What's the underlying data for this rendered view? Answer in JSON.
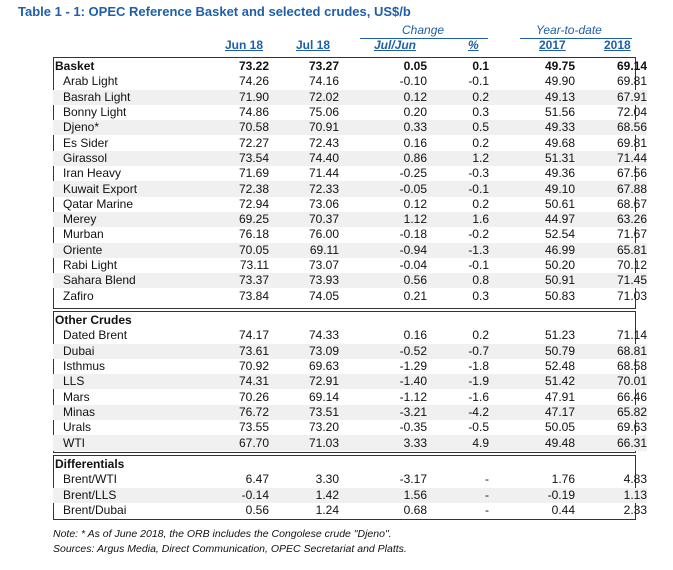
{
  "title": "Table 1 - 1: OPEC Reference Basket and selected crudes, US$/b",
  "headers": {
    "change_group": "Change",
    "ytd_group": "Year-to-date",
    "jun18": "Jun 18",
    "jul18": "Jul 18",
    "julJun": "Jul/Jun",
    "pct": "%",
    "y2017": "2017",
    "y2018": "2018"
  },
  "sections": [
    {
      "name": "Basket",
      "head_values": [
        "73.22",
        "73.27",
        "0.05",
        "0.1",
        "49.75",
        "69.14"
      ],
      "rows": [
        {
          "label": "Arab Light",
          "values": [
            "74.26",
            "74.16",
            "-0.10",
            "-0.1",
            "49.90",
            "69.81"
          ]
        },
        {
          "label": "Basrah Light",
          "values": [
            "71.90",
            "72.02",
            "0.12",
            "0.2",
            "49.13",
            "67.91"
          ]
        },
        {
          "label": "Bonny Light",
          "values": [
            "74.86",
            "75.06",
            "0.20",
            "0.3",
            "51.56",
            "72.04"
          ]
        },
        {
          "label": "Djeno*",
          "values": [
            "70.58",
            "70.91",
            "0.33",
            "0.5",
            "49.33",
            "68.56"
          ]
        },
        {
          "label": "Es Sider",
          "values": [
            "72.27",
            "72.43",
            "0.16",
            "0.2",
            "49.68",
            "69.81"
          ]
        },
        {
          "label": "Girassol",
          "values": [
            "73.54",
            "74.40",
            "0.86",
            "1.2",
            "51.31",
            "71.44"
          ]
        },
        {
          "label": "Iran Heavy",
          "values": [
            "71.69",
            "71.44",
            "-0.25",
            "-0.3",
            "49.36",
            "67.56"
          ]
        },
        {
          "label": "Kuwait Export",
          "values": [
            "72.38",
            "72.33",
            "-0.05",
            "-0.1",
            "49.10",
            "67.88"
          ]
        },
        {
          "label": "Qatar Marine",
          "values": [
            "72.94",
            "73.06",
            "0.12",
            "0.2",
            "50.61",
            "68.67"
          ]
        },
        {
          "label": "Merey",
          "values": [
            "69.25",
            "70.37",
            "1.12",
            "1.6",
            "44.97",
            "63.26"
          ]
        },
        {
          "label": "Murban",
          "values": [
            "76.18",
            "76.00",
            "-0.18",
            "-0.2",
            "52.54",
            "71.67"
          ]
        },
        {
          "label": "Oriente",
          "values": [
            "70.05",
            "69.11",
            "-0.94",
            "-1.3",
            "46.99",
            "65.81"
          ]
        },
        {
          "label": "Rabi Light",
          "values": [
            "73.11",
            "73.07",
            "-0.04",
            "-0.1",
            "50.20",
            "70.12"
          ]
        },
        {
          "label": "Sahara Blend",
          "values": [
            "73.37",
            "73.93",
            "0.56",
            "0.8",
            "50.91",
            "71.45"
          ]
        },
        {
          "label": "Zafiro",
          "values": [
            "73.84",
            "74.05",
            "0.21",
            "0.3",
            "50.83",
            "71.03"
          ]
        }
      ]
    },
    {
      "name": "Other Crudes",
      "head_values": [
        "",
        "",
        "",
        "",
        "",
        ""
      ],
      "rows": [
        {
          "label": "Dated Brent",
          "values": [
            "74.17",
            "74.33",
            "0.16",
            "0.2",
            "51.23",
            "71.14"
          ]
        },
        {
          "label": "Dubai",
          "values": [
            "73.61",
            "73.09",
            "-0.52",
            "-0.7",
            "50.79",
            "68.81"
          ]
        },
        {
          "label": "Isthmus",
          "values": [
            "70.92",
            "69.63",
            "-1.29",
            "-1.8",
            "52.48",
            "68.58"
          ]
        },
        {
          "label": "LLS",
          "values": [
            "74.31",
            "72.91",
            "-1.40",
            "-1.9",
            "51.42",
            "70.01"
          ]
        },
        {
          "label": "Mars",
          "values": [
            "70.26",
            "69.14",
            "-1.12",
            "-1.6",
            "47.91",
            "66.46"
          ]
        },
        {
          "label": "Minas",
          "values": [
            "76.72",
            "73.51",
            "-3.21",
            "-4.2",
            "47.17",
            "65.82"
          ]
        },
        {
          "label": "Urals",
          "values": [
            "73.55",
            "73.20",
            "-0.35",
            "-0.5",
            "50.05",
            "69.63"
          ]
        },
        {
          "label": "WTI",
          "values": [
            "67.70",
            "71.03",
            "3.33",
            "4.9",
            "49.48",
            "66.31"
          ]
        }
      ]
    },
    {
      "name": "Differentials",
      "head_values": [
        "",
        "",
        "",
        "",
        "",
        ""
      ],
      "rows": [
        {
          "label": "Brent/WTI",
          "values": [
            "6.47",
            "3.30",
            "-3.17",
            "-",
            "1.76",
            "4.83"
          ]
        },
        {
          "label": "Brent/LLS",
          "values": [
            "-0.14",
            "1.42",
            "1.56",
            "-",
            "-0.19",
            "1.13"
          ]
        },
        {
          "label": "Brent/Dubai",
          "values": [
            "0.56",
            "1.24",
            "0.68",
            "-",
            "0.44",
            "2.33"
          ]
        }
      ]
    }
  ],
  "notes": [
    "Note: * As of June 2018, the ORB includes the Congolese crude \"Djeno\".",
    "Sources: Argus Media, Direct Communication, OPEC Secretariat and Platts."
  ],
  "colors": {
    "accent": "#1f5fa8",
    "stripe": "#f0f0f0"
  }
}
